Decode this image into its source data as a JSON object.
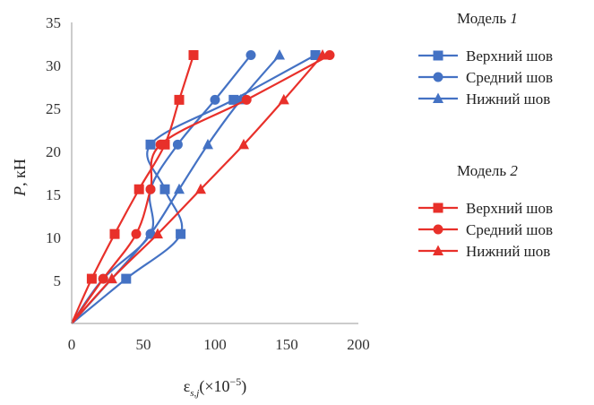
{
  "chart_data": {
    "type": "line",
    "xlabel": "ε",
    "xlabel_sub": "s,j",
    "xlabel_unit": "(×10",
    "xlabel_exp": "−5",
    "xlabel_close": ")",
    "ylabel_italic": "P",
    "ylabel_unit": ", кН",
    "xlim": [
      0,
      200
    ],
    "ylim": [
      0,
      35
    ],
    "xticks": [
      "0",
      "50",
      "100",
      "150",
      "200"
    ],
    "yticks": [
      "5",
      "10",
      "15",
      "20",
      "25",
      "30",
      "35"
    ],
    "grid": false,
    "legend_position": "right",
    "groups": [
      {
        "title_text": "Модель ",
        "title_num": "1",
        "color": "#4472c4",
        "series": [
          {
            "name": "Верхний шов",
            "marker": "square",
            "points": [
              [
                0,
                0
              ],
              [
                38,
                5.2
              ],
              [
                76,
                10.4
              ],
              [
                65,
                15.6
              ],
              [
                55,
                20.8
              ],
              [
                113,
                26
              ],
              [
                170,
                31.2
              ]
            ]
          },
          {
            "name": "Средний шов",
            "marker": "circle",
            "points": [
              [
                0,
                0
              ],
              [
                22,
                5.2
              ],
              [
                55,
                10.4
              ],
              [
                55,
                15.6
              ],
              [
                74,
                20.8
              ],
              [
                100,
                26
              ],
              [
                125,
                31.2
              ]
            ]
          },
          {
            "name": "Нижний шов",
            "marker": "triangle",
            "points": [
              [
                0,
                0
              ],
              [
                28,
                5.2
              ],
              [
                55,
                10.4
              ],
              [
                75,
                15.6
              ],
              [
                95,
                20.8
              ],
              [
                118,
                26
              ],
              [
                145,
                31.2
              ]
            ]
          }
        ]
      },
      {
        "title_text": "Модель ",
        "title_num": "2",
        "color": "#e8302a",
        "series": [
          {
            "name": "Верхний шов",
            "marker": "square",
            "points": [
              [
                0,
                0
              ],
              [
                14,
                5.2
              ],
              [
                30,
                10.4
              ],
              [
                47,
                15.6
              ],
              [
                65,
                20.8
              ],
              [
                75,
                26
              ],
              [
                85,
                31.2
              ]
            ]
          },
          {
            "name": "Средний шов",
            "marker": "circle",
            "points": [
              [
                0,
                0
              ],
              [
                22,
                5.2
              ],
              [
                45,
                10.4
              ],
              [
                55,
                15.6
              ],
              [
                62,
                20.8
              ],
              [
                122,
                26
              ],
              [
                180,
                31.2
              ]
            ]
          },
          {
            "name": "Нижний шов",
            "marker": "triangle",
            "points": [
              [
                0,
                0
              ],
              [
                28,
                5.2
              ],
              [
                60,
                10.4
              ],
              [
                90,
                15.6
              ],
              [
                120,
                20.8
              ],
              [
                148,
                26
              ],
              [
                175,
                31.2
              ]
            ]
          }
        ]
      }
    ]
  }
}
